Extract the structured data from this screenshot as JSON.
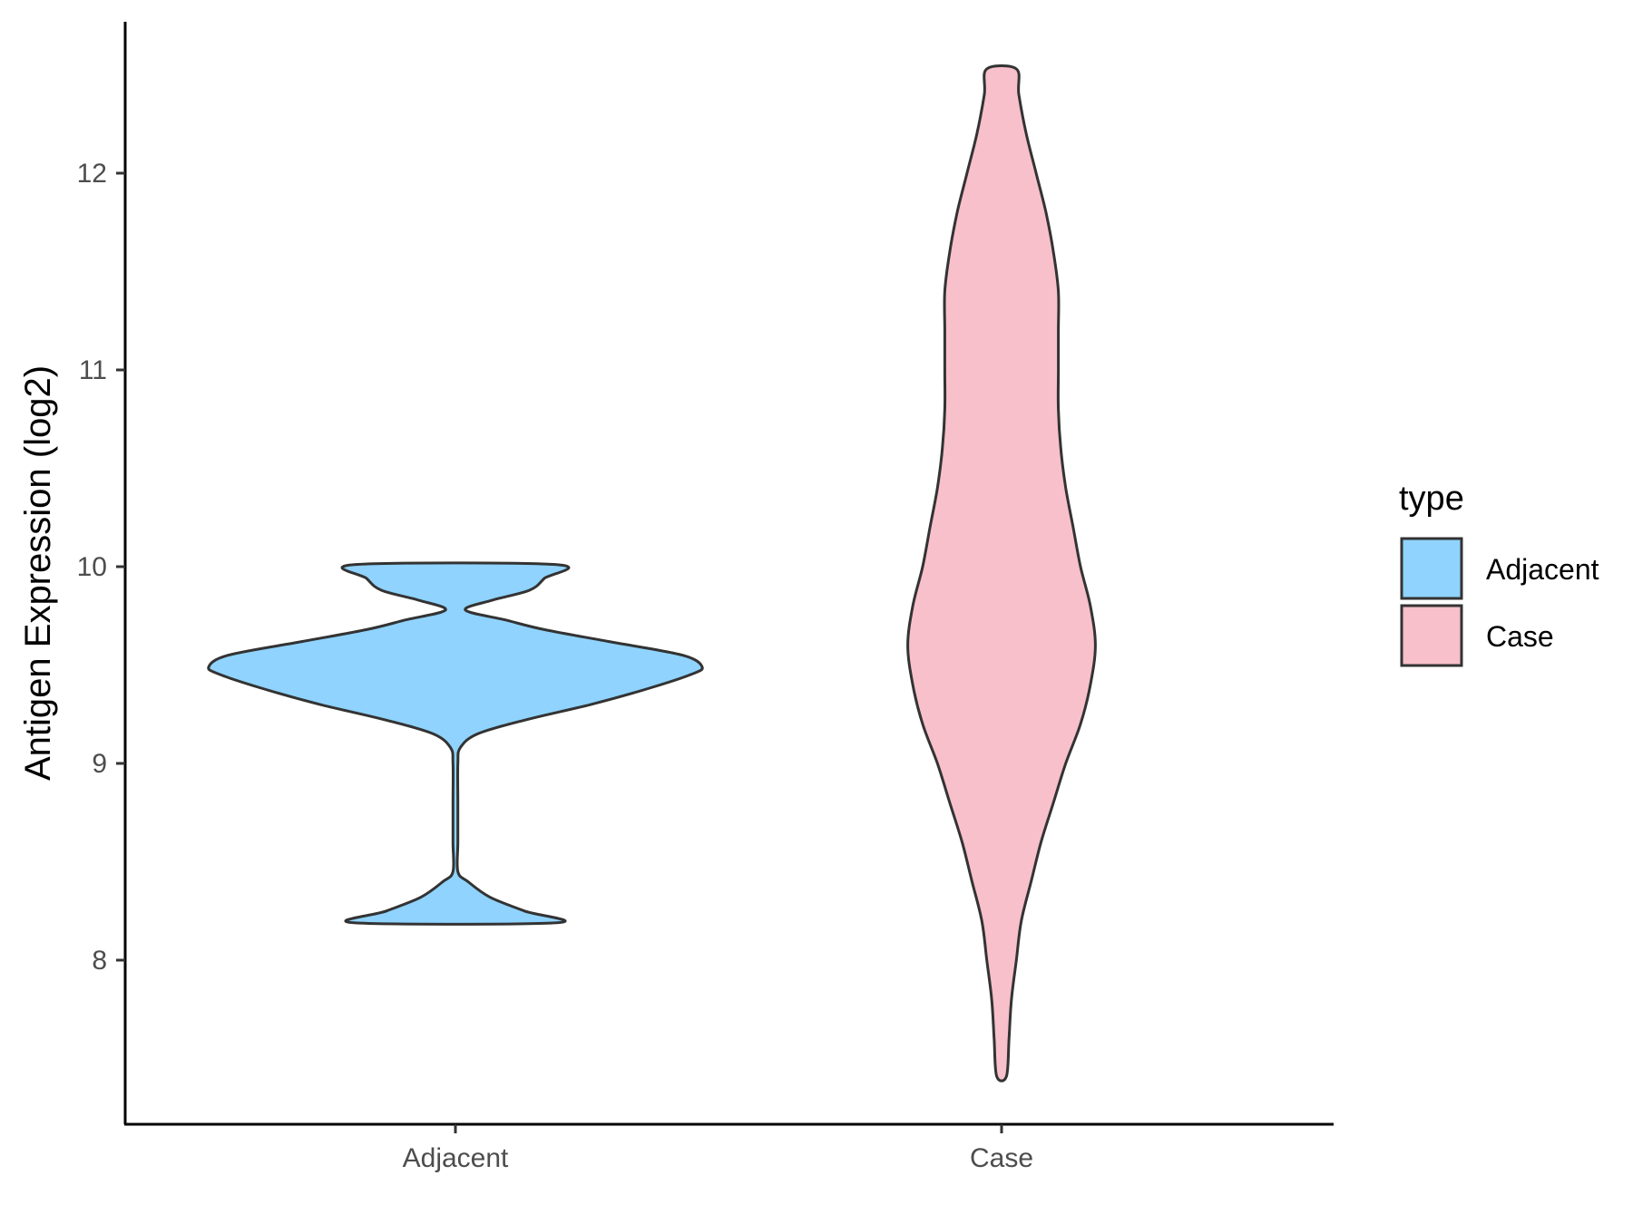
{
  "chart_data": {
    "type": "violin",
    "title": "",
    "xlabel": "",
    "ylabel": "Antigen Expression (log2)",
    "categories": [
      "Adjacent",
      "Case"
    ],
    "ylim": [
      7.15,
      12.75
    ],
    "yticks": [
      8,
      9,
      10,
      11,
      12
    ],
    "grid": false,
    "legend": {
      "title": "type",
      "position": "right",
      "entries": [
        {
          "label": "Adjacent",
          "color": "#8fd3fe"
        },
        {
          "label": "Case",
          "color": "#f7c0cb"
        }
      ]
    },
    "series": [
      {
        "name": "Adjacent",
        "color": "#8fd3fe",
        "y_min": 8.19,
        "y_max": 10.01,
        "density_profile": [
          [
            8.19,
            0.41
          ],
          [
            8.25,
            0.28
          ],
          [
            8.32,
            0.14
          ],
          [
            8.4,
            0.05
          ],
          [
            8.45,
            0.01
          ],
          [
            8.6,
            0.01
          ],
          [
            8.8,
            0.01
          ],
          [
            9.0,
            0.01
          ],
          [
            9.08,
            0.02
          ],
          [
            9.15,
            0.09
          ],
          [
            9.22,
            0.28
          ],
          [
            9.3,
            0.55
          ],
          [
            9.38,
            0.78
          ],
          [
            9.45,
            0.95
          ],
          [
            9.49,
            1.0
          ],
          [
            9.55,
            0.92
          ],
          [
            9.62,
            0.62
          ],
          [
            9.68,
            0.36
          ],
          [
            9.73,
            0.2
          ],
          [
            9.78,
            0.04
          ],
          [
            9.83,
            0.15
          ],
          [
            9.88,
            0.3
          ],
          [
            9.94,
            0.36
          ],
          [
            10.01,
            0.41
          ]
        ]
      },
      {
        "name": "Case",
        "color": "#f7c0cb",
        "y_min": 7.41,
        "y_max": 12.53,
        "density_profile": [
          [
            7.41,
            0.02
          ],
          [
            7.6,
            0.03
          ],
          [
            7.8,
            0.04
          ],
          [
            8.0,
            0.06
          ],
          [
            8.2,
            0.08
          ],
          [
            8.4,
            0.12
          ],
          [
            8.6,
            0.16
          ],
          [
            8.8,
            0.21
          ],
          [
            9.0,
            0.26
          ],
          [
            9.2,
            0.32
          ],
          [
            9.4,
            0.36
          ],
          [
            9.6,
            0.38
          ],
          [
            9.8,
            0.36
          ],
          [
            10.0,
            0.32
          ],
          [
            10.2,
            0.29
          ],
          [
            10.4,
            0.26
          ],
          [
            10.6,
            0.24
          ],
          [
            10.8,
            0.23
          ],
          [
            11.0,
            0.23
          ],
          [
            11.2,
            0.23
          ],
          [
            11.4,
            0.23
          ],
          [
            11.6,
            0.21
          ],
          [
            11.8,
            0.18
          ],
          [
            12.0,
            0.14
          ],
          [
            12.2,
            0.1
          ],
          [
            12.4,
            0.07
          ],
          [
            12.53,
            0.06
          ]
        ]
      }
    ]
  }
}
